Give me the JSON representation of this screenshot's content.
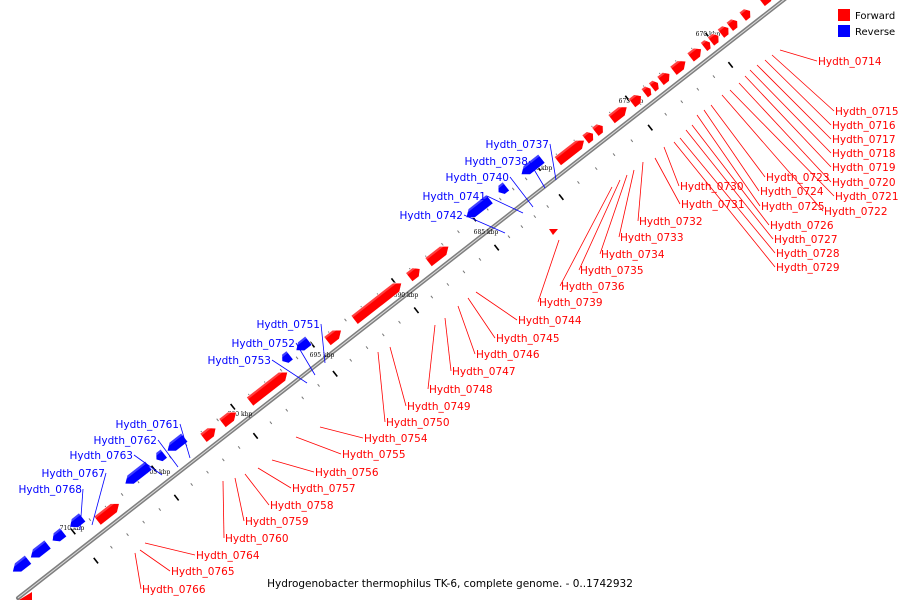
{
  "caption": "Hydrogenobacter thermophilus TK-6, complete genome. - 0..1742932",
  "legend": [
    {
      "label": "Forward",
      "color": "#ff0000"
    },
    {
      "label": "Reverse",
      "color": "#0000ff"
    }
  ],
  "colors": {
    "forward": "#ff0000",
    "reverse": "#0000ff",
    "backbone": "#7f7f7f",
    "tick": "#000000"
  },
  "ticks": [
    "670 kbp",
    "675 kbp",
    "680 kbp",
    "685 kbp",
    "690 kbp",
    "695 kbp",
    "700 kbp",
    "705 kbp",
    "710 kbp"
  ],
  "forward_labels": [
    "Hydth_0714",
    "Hydth_0715",
    "Hydth_0716",
    "Hydth_0717",
    "Hydth_0718",
    "Hydth_0719",
    "Hydth_0720",
    "Hydth_0721",
    "Hydth_0722",
    "Hydth_0723",
    "Hydth_0724",
    "Hydth_0725",
    "Hydth_0726",
    "Hydth_0727",
    "Hydth_0728",
    "Hydth_0729",
    "Hydth_0730",
    "Hydth_0731",
    "Hydth_0732",
    "Hydth_0733",
    "Hydth_0734",
    "Hydth_0735",
    "Hydth_0736",
    "Hydth_0739",
    "Hydth_0744",
    "Hydth_0745",
    "Hydth_0746",
    "Hydth_0747",
    "Hydth_0748",
    "Hydth_0749",
    "Hydth_0750",
    "Hydth_0754",
    "Hydth_0755",
    "Hydth_0756",
    "Hydth_0757",
    "Hydth_0758",
    "Hydth_0759",
    "Hydth_0760",
    "Hydth_0764",
    "Hydth_0765",
    "Hydth_0766"
  ],
  "reverse_labels": [
    "Hydth_0737",
    "Hydth_0738",
    "Hydth_0740",
    "Hydth_0741",
    "Hydth_0742",
    "Hydth_0751",
    "Hydth_0752",
    "Hydth_0753",
    "Hydth_0761",
    "Hydth_0762",
    "Hydth_0763",
    "Hydth_0767",
    "Hydth_0768"
  ]
}
